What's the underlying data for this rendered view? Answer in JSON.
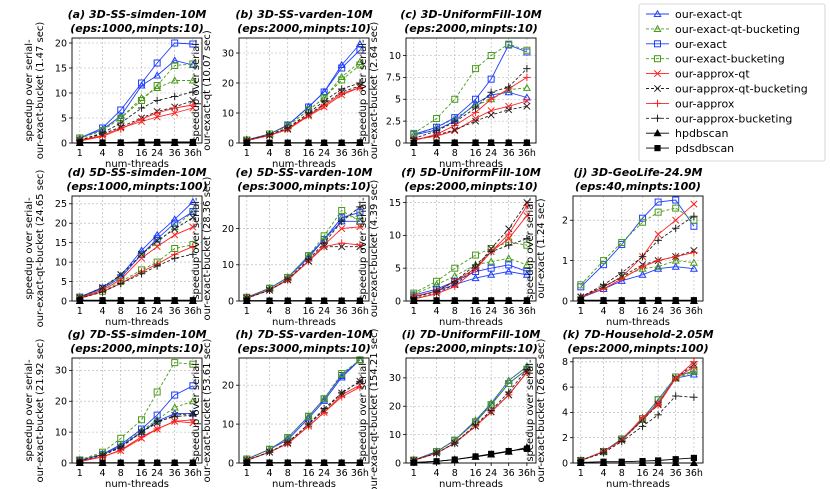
{
  "x_categories": [
    "1",
    "4",
    "8",
    "16",
    "24",
    "36",
    "36h"
  ],
  "xlabel": "num-threads",
  "series_styles": [
    {
      "name": "our-exact-qt",
      "color": "#1f3fff",
      "marker": "tri",
      "dash": ""
    },
    {
      "name": "our-exact-qt-bucketing",
      "color": "#4a9a1a",
      "marker": "tri",
      "dash": "3,2"
    },
    {
      "name": "our-exact",
      "color": "#1f3fff",
      "marker": "sq",
      "dash": ""
    },
    {
      "name": "our-exact-bucketing",
      "color": "#4a9a1a",
      "marker": "sq",
      "dash": "3,2"
    },
    {
      "name": "our-approx-qt",
      "color": "#ff2020",
      "marker": "x",
      "dash": ""
    },
    {
      "name": "our-approx-qt-bucketing",
      "color": "#222222",
      "marker": "x",
      "dash": "3,2"
    },
    {
      "name": "our-approx",
      "color": "#ff2020",
      "marker": "plus",
      "dash": ""
    },
    {
      "name": "our-approx-bucketing",
      "color": "#222222",
      "marker": "plus",
      "dash": "3,2"
    },
    {
      "name": "hpdbscan",
      "color": "#000000",
      "marker": "tri-f",
      "dash": ""
    },
    {
      "name": "pdsdbscan",
      "color": "#000000",
      "marker": "sq-f",
      "dash": ""
    }
  ],
  "chart_data": [
    {
      "id": "a",
      "type": "line",
      "title_prefix": "(a)",
      "title_name": "3D-SS-simden-10M",
      "subtitle": "(eps:1000,minpts:10)",
      "ylabel1": "speedup over serial-",
      "ylabel2": "our-exact-bucket (1.47 sec)",
      "ylim": [
        0,
        21
      ],
      "yticks": [
        0,
        5,
        10,
        15,
        20
      ],
      "series": [
        [
          1,
          2.7,
          5.4,
          11.5,
          13.5,
          16.5,
          15.6
        ],
        [
          0.9,
          2.5,
          5.0,
          9.0,
          11.0,
          12.5,
          12.5
        ],
        [
          1,
          3.0,
          6.6,
          12.0,
          16.0,
          20.0,
          19.8
        ],
        [
          1,
          2.5,
          5.0,
          8.5,
          11.5,
          15.5,
          15.8
        ],
        [
          0.5,
          1.5,
          3.0,
          4.3,
          5.2,
          6.0,
          7.0
        ],
        [
          0.6,
          1.8,
          3.2,
          5.0,
          6.3,
          7.2,
          8.5
        ],
        [
          0.4,
          1.3,
          2.8,
          4.8,
          6.0,
          7.0,
          7.6
        ],
        [
          0.6,
          2.0,
          4.0,
          7.0,
          8.5,
          9.3,
          10.2
        ],
        [
          0,
          0,
          0,
          0,
          0,
          0,
          0
        ],
        [
          0.1,
          0.1,
          0.1,
          0.2,
          0.2,
          0.2,
          0.2
        ]
      ]
    },
    {
      "id": "b",
      "type": "line",
      "title_prefix": "(b)",
      "title_name": "3D-SS-varden-10M",
      "subtitle": "(eps:2000,minpts:10)",
      "ylabel1": "speedup over serial-",
      "ylabel2": "our-exact-qt (10.07 sec)",
      "ylim": [
        0,
        35
      ],
      "yticks": [
        0,
        10,
        20,
        30
      ],
      "series": [
        [
          1,
          3,
          6,
          12,
          17,
          26,
          33
        ],
        [
          1,
          3,
          5.6,
          11,
          15,
          22,
          27
        ],
        [
          1,
          3,
          6,
          12,
          17,
          25,
          31
        ],
        [
          1,
          3,
          5.7,
          11,
          15,
          21,
          26
        ],
        [
          0.8,
          2.5,
          4.5,
          9,
          12,
          16,
          18.5
        ],
        [
          0.8,
          2.6,
          4.8,
          9.5,
          13,
          17,
          19
        ],
        [
          0.8,
          2.6,
          4.7,
          9.3,
          12.5,
          16.5,
          18.5
        ],
        [
          1,
          2.8,
          5,
          10,
          14,
          18,
          20
        ],
        [
          0,
          0,
          0,
          0,
          0,
          0,
          0
        ],
        [
          0.1,
          0.1,
          0.1,
          0.1,
          0.1,
          0.1,
          0.2
        ]
      ]
    },
    {
      "id": "c",
      "type": "line",
      "title_prefix": "(c)",
      "title_name": "3D-UniformFill-10M",
      "subtitle": "(eps:2000,minpts:10)",
      "ylabel1": "speedup over serial-",
      "ylabel2": "our-exact-bucket (2.64 sec)",
      "ylim": [
        0,
        12
      ],
      "yticks": [
        0,
        2.5,
        5,
        7.5,
        10
      ],
      "series": [
        [
          0.9,
          1.5,
          2.5,
          4.5,
          5.5,
          5.8,
          5.2
        ],
        [
          0.9,
          1.8,
          2.8,
          4.3,
          5,
          6.1,
          6.3
        ],
        [
          1,
          1.8,
          2.9,
          5.0,
          7.3,
          11.2,
          10.4
        ],
        [
          1.1,
          2.8,
          5,
          8.5,
          10,
          11.3,
          10.6
        ],
        [
          0.4,
          0.8,
          1.4,
          2.8,
          3.7,
          4.2,
          4.8
        ],
        [
          0.3,
          0.9,
          1.5,
          2.5,
          3.2,
          3.8,
          4.2
        ],
        [
          0.3,
          1.0,
          2.0,
          3.5,
          5,
          6.2,
          7.5
        ],
        [
          0.5,
          1.4,
          2.4,
          4,
          5.8,
          6.4,
          8.5
        ],
        [
          0,
          0,
          0,
          0,
          0,
          0,
          0
        ],
        [
          0.02,
          0.05,
          0.05,
          0.05,
          0.05,
          0.05,
          0.05
        ]
      ]
    },
    {
      "id": "d",
      "type": "line",
      "title_prefix": "(d)",
      "title_name": "5D-SS-simden-10M",
      "subtitle": "(eps:1000,minpts:100)",
      "ylabel1": "speedup over serial-",
      "ylabel2": "our-exact-qt-bucket (24.65 sec)",
      "ylim": [
        0,
        27
      ],
      "yticks": [
        0,
        5,
        10,
        15,
        20,
        25
      ],
      "series": [
        [
          1,
          3.5,
          6.5,
          13,
          17,
          21,
          25.5
        ],
        [
          1,
          3.4,
          6.3,
          12,
          15,
          19,
          23
        ],
        [
          1,
          3.2,
          6,
          12,
          16,
          20,
          23
        ],
        [
          0.9,
          2.5,
          5,
          8,
          10,
          13.5,
          14.5
        ],
        [
          0.8,
          2.8,
          5.5,
          11,
          14,
          17,
          19
        ],
        [
          0.9,
          3.5,
          6.8,
          12,
          15.5,
          18.5,
          21.5
        ],
        [
          0.7,
          2.4,
          4.5,
          7.5,
          9.5,
          12,
          14
        ],
        [
          0.7,
          2.3,
          4.5,
          7,
          9,
          11,
          12
        ],
        [
          0,
          0,
          0,
          0,
          0,
          0,
          0
        ],
        [
          0.2,
          0.2,
          0.2,
          0.2,
          0.2,
          0.2,
          0.2
        ]
      ]
    },
    {
      "id": "e",
      "type": "line",
      "title_prefix": "(e)",
      "title_name": "5D-SS-varden-10M",
      "subtitle": "(eps:3000,minpts:10)",
      "ylabel1": "speedup over serial-",
      "ylabel2": "our-exact-bucket (28.36 sec)",
      "ylim": [
        0,
        29
      ],
      "yticks": [
        0,
        10,
        20
      ],
      "series": [
        [
          1,
          3.5,
          6.5,
          12,
          17,
          22,
          22
        ],
        [
          1,
          3.5,
          6.5,
          12.5,
          17,
          23,
          23.5
        ],
        [
          1,
          3.5,
          6.5,
          12.5,
          17,
          23,
          24.5
        ],
        [
          1,
          3.5,
          6.5,
          12.5,
          18,
          25,
          22
        ],
        [
          0.8,
          3,
          6,
          11,
          15.5,
          20,
          20.5
        ],
        [
          0.8,
          3,
          5.8,
          11,
          15,
          15,
          15
        ],
        [
          0.8,
          3,
          5.8,
          11,
          15,
          16,
          15.5
        ],
        [
          0.8,
          3,
          6,
          11.5,
          16,
          22,
          26
        ],
        [
          0,
          0,
          0,
          0,
          0,
          0,
          0
        ],
        [
          0.1,
          0.1,
          0.1,
          0.1,
          0.1,
          0.1,
          0.1
        ]
      ]
    },
    {
      "id": "f",
      "type": "line",
      "title_prefix": "(f)",
      "title_name": "5D-UniformFill-10M",
      "subtitle": "(eps:2000,minpts:10)",
      "ylabel1": "speedup over serial-",
      "ylabel2": "our-exact-bucket (4.39 sec)",
      "ylim": [
        0,
        16
      ],
      "yticks": [
        0,
        5,
        10,
        15
      ],
      "series": [
        [
          0.7,
          1.5,
          2.5,
          3.5,
          4,
          4.5,
          4
        ],
        [
          1,
          2.5,
          3.8,
          5.5,
          6,
          6.5,
          5.5
        ],
        [
          0.9,
          1.8,
          3,
          4.5,
          5,
          5.5,
          4.5
        ],
        [
          1.2,
          3,
          5,
          7,
          8,
          9,
          8.5
        ],
        [
          0.7,
          1.5,
          3,
          5,
          7.5,
          9.5,
          13
        ],
        [
          0.3,
          1.2,
          2.5,
          5,
          8,
          11,
          15
        ],
        [
          0.3,
          1.1,
          2.2,
          4.8,
          7.5,
          10.2,
          14.5
        ],
        [
          0.5,
          1.5,
          3,
          5.5,
          7.5,
          8.5,
          9.5
        ],
        [
          0,
          0,
          0,
          0,
          0,
          0,
          0
        ],
        [
          0.1,
          0.1,
          0.1,
          0.1,
          0.1,
          0.1,
          0.1
        ]
      ]
    },
    {
      "id": "j",
      "type": "line",
      "title_prefix": "(j)",
      "title_name": "3D-GeoLife-24.9M",
      "subtitle": "(eps:40,minpts:100)",
      "ylabel1": "speedup over serial-",
      "ylabel2": "our-exact (1.24 sec)",
      "ylim": [
        0,
        2.6
      ],
      "yticks": [
        0,
        1,
        2
      ],
      "series": [
        [
          0.08,
          0.3,
          0.5,
          0.65,
          0.8,
          0.85,
          0.8
        ],
        [
          0.1,
          0.35,
          0.6,
          0.8,
          0.85,
          1.0,
          0.95
        ],
        [
          0.35,
          0.9,
          1.4,
          2.05,
          2.45,
          2.5,
          1.85
        ],
        [
          0.4,
          1.0,
          1.45,
          1.95,
          2.2,
          2.3,
          2.0
        ],
        [
          0.1,
          0.35,
          0.6,
          1.1,
          1.65,
          2.0,
          2.4
        ],
        [
          0.1,
          0.35,
          0.6,
          0.9,
          1.0,
          1.1,
          1.25
        ],
        [
          0.1,
          0.3,
          0.55,
          0.85,
          1.0,
          1.1,
          1.2
        ],
        [
          0.1,
          0.4,
          0.7,
          1.1,
          1.5,
          1.8,
          2.1
        ],
        [
          0,
          0,
          0,
          0,
          0,
          0,
          0
        ],
        [
          0.02,
          0.02,
          0.02,
          0.02,
          0.02,
          0.02,
          0.02
        ]
      ]
    },
    {
      "id": "g",
      "type": "line",
      "title_prefix": "(g)",
      "title_name": "7D-SS-simden-10M",
      "subtitle": "(eps:2000,minpts:10)",
      "ylabel1": "speedup over serial-",
      "ylabel2": "our-exact-bucket (21.92 sec)",
      "ylim": [
        0,
        34
      ],
      "yticks": [
        0,
        10,
        20,
        30
      ],
      "series": [
        [
          0.8,
          2.8,
          5.5,
          10,
          13.5,
          16,
          16
        ],
        [
          1,
          3,
          5.8,
          10.5,
          14,
          18,
          20
        ],
        [
          0.8,
          2.8,
          6,
          11,
          15.5,
          22,
          25
        ],
        [
          1,
          3.5,
          8,
          14,
          23,
          32.5,
          32
        ],
        [
          0.5,
          2,
          4,
          8,
          11,
          13.5,
          13
        ],
        [
          0.7,
          2.5,
          5,
          10,
          13,
          15.5,
          16
        ],
        [
          0.5,
          2,
          4.2,
          8.5,
          11,
          13.5,
          14
        ],
        [
          0.7,
          2.5,
          5.2,
          10,
          13.5,
          15,
          15.5
        ],
        [
          0,
          0,
          0,
          0,
          0,
          0,
          0
        ],
        [
          0.1,
          0.1,
          0.1,
          0.1,
          0.1,
          0.1,
          0.1
        ]
      ]
    },
    {
      "id": "h",
      "type": "line",
      "title_prefix": "(h)",
      "title_name": "7D-SS-varden-10M",
      "subtitle": "(eps:3000,minpts:10)",
      "ylabel1": "speedup over serial-",
      "ylabel2": "our-exact-bucket (53.61 sec)",
      "ylim": [
        0,
        27
      ],
      "yticks": [
        0,
        10,
        20
      ],
      "series": [
        [
          1,
          3.5,
          6,
          11.5,
          16,
          22,
          26.5
        ],
        [
          1,
          3.5,
          6.5,
          12,
          16.5,
          22.5,
          26.5
        ],
        [
          1,
          3.5,
          6.5,
          12,
          16.5,
          22.5,
          26.5
        ],
        [
          1,
          3.5,
          6.5,
          12,
          16.5,
          23,
          26.5
        ],
        [
          0.7,
          2.8,
          5,
          9.5,
          13,
          17.5,
          20
        ],
        [
          0.7,
          2.8,
          5.2,
          10,
          13.5,
          18,
          21
        ],
        [
          0.7,
          2.8,
          5,
          9.5,
          13,
          17,
          19.5
        ],
        [
          0.7,
          2.8,
          5.3,
          10,
          14,
          18,
          21
        ],
        [
          0,
          0,
          0,
          0,
          0,
          0,
          0
        ],
        [
          0.1,
          0.1,
          0.1,
          0.1,
          0.1,
          0.1,
          0.1
        ]
      ]
    },
    {
      "id": "i",
      "type": "line",
      "title_prefix": "(i)",
      "title_name": "7D-UniformFill-10M",
      "subtitle": "(eps:2000,minpts:10)",
      "ylabel1": "speedup over serial-",
      "ylabel2": "our-exact-qt-bucket (154.21 sec)",
      "ylim": [
        0,
        37
      ],
      "yticks": [
        0,
        10,
        20,
        30
      ],
      "series": [
        [
          1,
          4,
          8,
          15,
          21,
          29,
          34
        ],
        [
          1,
          4,
          8,
          15,
          21,
          29,
          34
        ],
        [
          1,
          4,
          8,
          14.5,
          20.5,
          28,
          33
        ],
        [
          1,
          4,
          8,
          14.5,
          20.5,
          28,
          33
        ],
        [
          0.9,
          3.5,
          7,
          13,
          18,
          24,
          32
        ],
        [
          0.9,
          3.5,
          7,
          13,
          18,
          24,
          32
        ],
        [
          0.9,
          3.5,
          7,
          13,
          18,
          24,
          32
        ],
        [
          0.9,
          3.5,
          7,
          13.5,
          18.5,
          25,
          33
        ],
        [
          0.2,
          0.6,
          1.2,
          2.2,
          3,
          4,
          5.5
        ],
        [
          0.1,
          0.6,
          1.2,
          2.3,
          3.2,
          4.2,
          5
        ]
      ]
    },
    {
      "id": "k",
      "type": "line",
      "title_prefix": "(k)",
      "title_name": "7D-Household-2.05M",
      "subtitle": "(eps:2000,minpts:100)",
      "ylabel1": "speedup over serial-",
      "ylabel2": "our-exact-bucket (26.66 sec)",
      "ylim": [
        0,
        8.3
      ],
      "yticks": [
        0,
        2,
        4,
        6,
        8
      ],
      "series": [
        [
          0.2,
          0.9,
          1.9,
          3.4,
          4.8,
          6.7,
          7.0
        ],
        [
          0.2,
          0.9,
          1.9,
          3.4,
          4.8,
          6.7,
          7.2
        ],
        [
          0.2,
          0.9,
          1.9,
          3.5,
          5,
          6.8,
          7.3
        ],
        [
          0.2,
          0.9,
          1.9,
          3.5,
          5,
          6.8,
          7.3
        ],
        [
          0.2,
          0.9,
          1.8,
          3.4,
          4.7,
          6.7,
          7.6
        ],
        [
          0.2,
          0.9,
          1.8,
          3.4,
          4.6,
          6.7,
          7.8
        ],
        [
          0.2,
          0.9,
          1.8,
          3.6,
          4.6,
          6.7,
          8.0
        ],
        [
          0.2,
          0.8,
          1.7,
          2.9,
          3.8,
          5.3,
          5.2
        ],
        [
          0,
          0,
          0,
          0,
          0,
          0,
          0
        ],
        [
          0.05,
          0.1,
          0.1,
          0.15,
          0.2,
          0.3,
          0.4
        ]
      ]
    }
  ]
}
